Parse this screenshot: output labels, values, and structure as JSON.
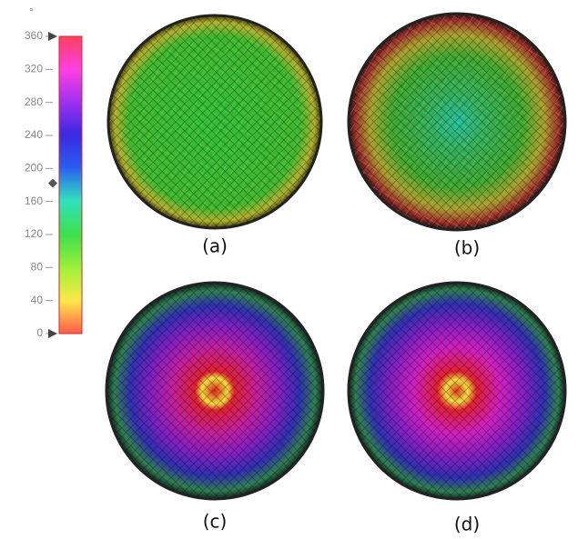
{
  "colorbar": {
    "unit": "°",
    "lim": [
      0,
      360
    ],
    "ticks": [
      0,
      40,
      80,
      120,
      160,
      200,
      240,
      280,
      320,
      360
    ],
    "marker": 182
  },
  "panels": [
    {
      "label": "(a)"
    },
    {
      "label": "(b)"
    },
    {
      "label": "(c)"
    },
    {
      "label": "(d)"
    }
  ]
}
